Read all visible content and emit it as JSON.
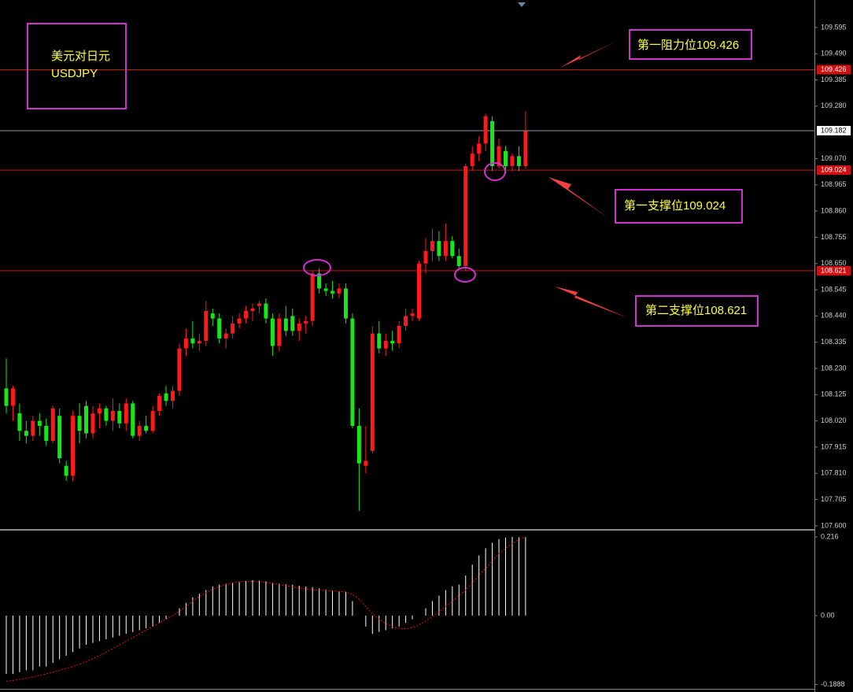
{
  "chart_data": [
    {
      "type": "candlestick",
      "label_box": [
        "美元对日元",
        "USDJPY"
      ],
      "up_color": "#ff1a1a",
      "down_color": "#19e619",
      "ylim": [
        107.587,
        109.705
      ],
      "yticks": [
        109.595,
        {
          "value": 109.49,
          "label": "109.490"
        },
        109.385,
        {
          "value": 109.28,
          "label": "109.280"
        },
        {
          "value": 109.07,
          "label": "109.070"
        },
        108.965,
        {
          "value": 108.86,
          "label": "108.860"
        },
        108.755,
        {
          "value": 108.65,
          "label": "108.650"
        },
        108.545,
        {
          "value": 108.44,
          "label": "108.440"
        },
        108.335,
        {
          "value": 108.23,
          "label": "108.230"
        },
        108.125,
        {
          "value": 108.02,
          "label": "108.020"
        },
        107.915,
        {
          "value": 107.81,
          "label": "107.810"
        },
        107.705,
        {
          "value": 107.6,
          "label": "107.600"
        }
      ],
      "levels": [
        {
          "name": "第一阻力位109.426",
          "value": 109.426,
          "color": "#d01010"
        },
        {
          "name": "第一支撑位109.024",
          "value": 109.024,
          "color": "#d01010"
        },
        {
          "name": "第二支撑位108.621",
          "value": 108.621,
          "color": "#d01010"
        }
      ],
      "last_price": 109.182,
      "open": [
        108.15,
        108.08,
        108.05,
        107.98,
        107.96,
        108.02,
        108.0,
        107.94,
        108.04,
        107.84,
        107.8,
        108.04,
        108.08,
        107.97,
        108.05,
        108.07,
        108.02,
        108.06,
        108.01,
        108.09,
        107.96,
        108.0,
        107.98,
        108.06,
        108.13,
        108.1,
        108.14,
        108.31,
        108.35,
        108.33,
        108.34,
        108.45,
        108.43,
        108.35,
        108.37,
        108.41,
        108.43,
        108.46,
        108.48,
        108.49,
        108.43,
        108.32,
        108.43,
        108.44,
        108.38,
        108.41,
        108.42,
        108.61,
        108.55,
        108.54,
        108.53,
        108.55,
        108.43,
        108.0,
        107.84,
        107.9,
        108.37,
        108.31,
        108.34,
        108.33,
        108.4,
        108.44,
        108.43,
        108.65,
        108.7,
        108.74,
        108.68,
        108.74,
        108.68,
        108.64,
        109.04,
        109.09,
        109.13,
        109.22,
        109.04,
        109.1,
        109.04,
        109.08,
        109.04
      ],
      "high": [
        108.27,
        108.16,
        108.09,
        108.02,
        108.04,
        108.05,
        108.03,
        108.08,
        108.07,
        107.86,
        108.06,
        108.09,
        108.1,
        108.08,
        108.09,
        108.08,
        108.11,
        108.09,
        108.11,
        108.1,
        108.02,
        108.04,
        108.08,
        108.13,
        108.16,
        108.16,
        108.33,
        108.39,
        108.42,
        108.37,
        108.5,
        108.47,
        108.45,
        108.39,
        108.44,
        108.45,
        108.48,
        108.49,
        108.5,
        108.51,
        108.45,
        108.45,
        108.48,
        108.47,
        108.43,
        108.44,
        108.62,
        108.63,
        108.57,
        108.58,
        108.57,
        108.57,
        108.45,
        108.07,
        108.0,
        108.4,
        108.42,
        108.37,
        108.38,
        108.42,
        108.47,
        108.47,
        108.66,
        108.75,
        108.79,
        108.78,
        108.81,
        108.76,
        108.71,
        109.05,
        109.12,
        109.16,
        109.25,
        109.24,
        109.15,
        109.12,
        109.09,
        109.12,
        109.26
      ],
      "low": [
        108.05,
        108.02,
        107.94,
        107.93,
        107.94,
        107.96,
        107.92,
        107.93,
        107.85,
        107.78,
        107.78,
        107.93,
        107.95,
        107.95,
        107.99,
        108.0,
        107.98,
        107.99,
        107.98,
        107.95,
        107.94,
        107.97,
        107.97,
        108.04,
        108.08,
        108.07,
        108.12,
        108.28,
        108.31,
        108.3,
        108.32,
        108.4,
        108.33,
        108.31,
        108.35,
        108.39,
        108.41,
        108.42,
        108.45,
        108.41,
        108.28,
        108.3,
        108.36,
        108.36,
        108.34,
        108.37,
        108.4,
        108.53,
        108.52,
        108.51,
        108.51,
        108.41,
        107.99,
        107.66,
        107.81,
        107.89,
        108.29,
        108.28,
        108.3,
        108.31,
        108.38,
        108.42,
        108.42,
        108.61,
        108.66,
        108.66,
        108.66,
        108.67,
        108.63,
        108.62,
        109.02,
        109.06,
        109.1,
        109.02,
        109.03,
        109.01,
        109.02,
        109.02,
        109.03
      ],
      "close": [
        108.08,
        108.15,
        107.98,
        107.96,
        108.02,
        108.0,
        107.94,
        108.07,
        107.87,
        107.8,
        108.04,
        107.98,
        107.97,
        108.05,
        108.07,
        108.02,
        108.06,
        108.01,
        108.09,
        107.96,
        108.0,
        107.98,
        108.06,
        108.12,
        108.1,
        108.14,
        108.31,
        108.35,
        108.33,
        108.34,
        108.46,
        108.43,
        108.35,
        108.37,
        108.41,
        108.43,
        108.46,
        108.47,
        108.49,
        108.43,
        108.32,
        108.43,
        108.38,
        108.38,
        108.41,
        108.42,
        108.61,
        108.55,
        108.54,
        108.53,
        108.55,
        108.43,
        108.0,
        107.85,
        107.86,
        108.37,
        108.31,
        108.34,
        108.33,
        108.4,
        108.44,
        108.45,
        108.65,
        108.7,
        108.74,
        108.68,
        108.74,
        108.68,
        108.64,
        109.04,
        109.09,
        109.13,
        109.24,
        109.04,
        109.12,
        109.04,
        109.08,
        109.04,
        109.18
      ]
    },
    {
      "type": "macd",
      "ylim": [
        -0.2009,
        0.231
      ],
      "yticks": [
        0.216,
        {
          "value": 0,
          "label": "0.00"
        },
        -0.1888
      ],
      "hist_color": "#ffffff",
      "signal_color": "#e01010",
      "histogram": [
        -0.16,
        -0.16,
        -0.155,
        -0.15,
        -0.15,
        -0.14,
        -0.14,
        -0.13,
        -0.12,
        -0.11,
        -0.1,
        -0.09,
        -0.08,
        -0.075,
        -0.07,
        -0.065,
        -0.06,
        -0.055,
        -0.05,
        -0.045,
        -0.04,
        -0.035,
        -0.03,
        -0.02,
        -0.01,
        0.0,
        0.02,
        0.035,
        0.05,
        0.06,
        0.07,
        0.08,
        0.085,
        0.088,
        0.09,
        0.092,
        0.095,
        0.097,
        0.096,
        0.094,
        0.09,
        0.088,
        0.086,
        0.085,
        0.082,
        0.08,
        0.078,
        0.075,
        0.072,
        0.07,
        0.068,
        0.065,
        0.04,
        0.0,
        -0.03,
        -0.05,
        -0.045,
        -0.04,
        -0.035,
        -0.03,
        -0.02,
        -0.01,
        0.0,
        0.02,
        0.04,
        0.055,
        0.07,
        0.08,
        0.085,
        0.11,
        0.14,
        0.165,
        0.185,
        0.2,
        0.21,
        0.214,
        0.216,
        0.215,
        0.216
      ],
      "signal": [
        -0.18,
        -0.178,
        -0.175,
        -0.172,
        -0.168,
        -0.164,
        -0.16,
        -0.155,
        -0.15,
        -0.145,
        -0.14,
        -0.133,
        -0.126,
        -0.118,
        -0.11,
        -0.1,
        -0.09,
        -0.08,
        -0.07,
        -0.06,
        -0.05,
        -0.04,
        -0.03,
        -0.02,
        -0.01,
        0.0,
        0.012,
        0.025,
        0.04,
        0.052,
        0.063,
        0.072,
        0.08,
        0.086,
        0.09,
        0.093,
        0.094,
        0.094,
        0.093,
        0.091,
        0.088,
        0.085,
        0.082,
        0.079,
        0.076,
        0.073,
        0.071,
        0.07,
        0.069,
        0.068,
        0.067,
        0.065,
        0.058,
        0.045,
        0.025,
        0.005,
        -0.01,
        -0.022,
        -0.03,
        -0.035,
        -0.036,
        -0.033,
        -0.025,
        -0.015,
        -0.003,
        0.01,
        0.025,
        0.04,
        0.055,
        0.07,
        0.09,
        0.11,
        0.13,
        0.15,
        0.17,
        0.185,
        0.198,
        0.208,
        0.216
      ]
    }
  ]
}
